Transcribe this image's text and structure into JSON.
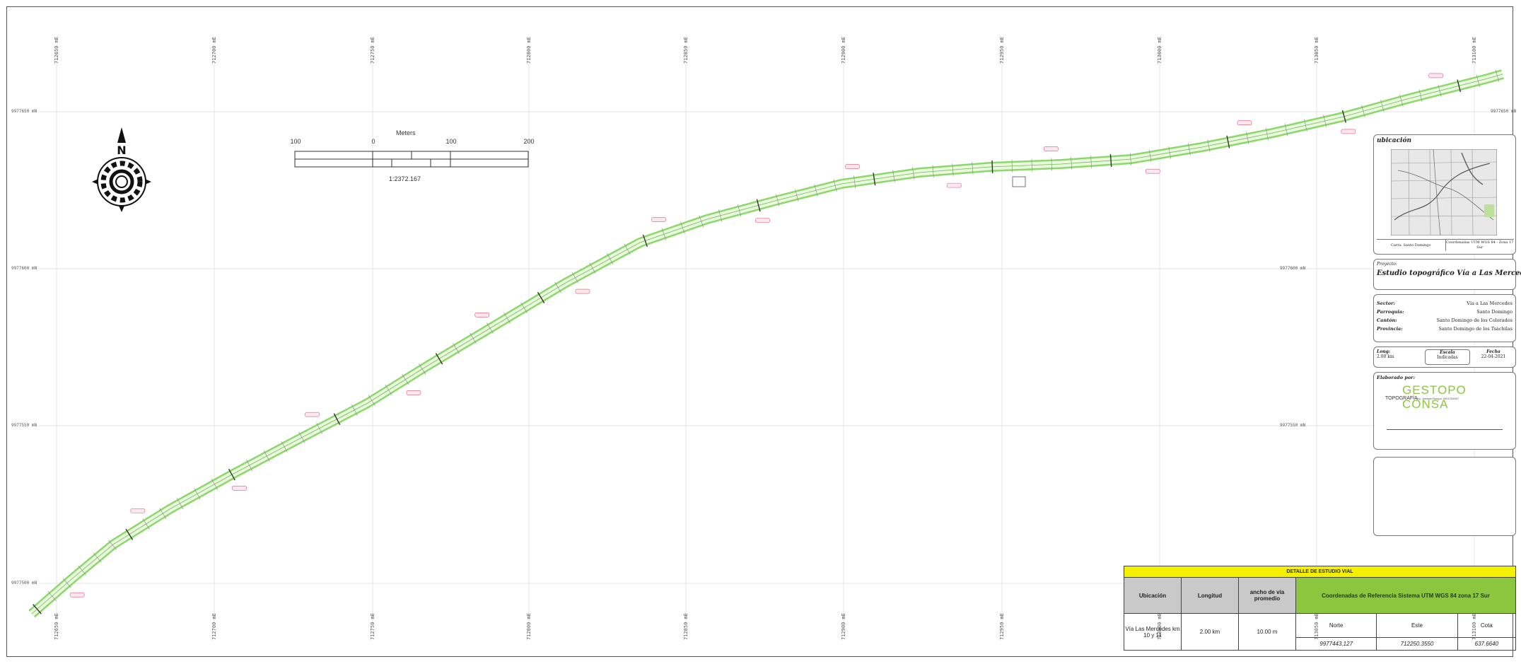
{
  "map": {
    "top_coords": [
      "712650 mE",
      "712700 mE",
      "712750 mE",
      "712800 mE",
      "712850 mE",
      "712900 mE",
      "712950 mE",
      "713000 mE",
      "713050 mE",
      "713100 mE"
    ],
    "bottom_coords": [
      "712650 mE",
      "712700 mE",
      "712750 mE",
      "712800 mE",
      "712850 mE",
      "712900 mE",
      "712950 mE",
      "713000 mE",
      "713050 mE",
      "713100 mE"
    ],
    "left_coords": [
      "9977650 mN",
      "9977600 mN",
      "9977550 mN",
      "9977500 mN"
    ],
    "right_coords": [
      "9977650 mN",
      "9977600 mN",
      "9977550 mN"
    ],
    "road_color": "#8cd86a",
    "station_color": "#e05a7a"
  },
  "scale": {
    "title": "Meters",
    "ticks": [
      "100",
      "0",
      "100",
      "200"
    ],
    "ratio": "1:2372.167"
  },
  "location_panel": {
    "title": "ubicación",
    "left_caption": "Carta: Santo Domingo",
    "right_caption": "Coordenadas UTM WGS 84 - Zona 17 Sur"
  },
  "project_panel": {
    "label": "Proyecto:",
    "name": "Estudio topográfico Vía a Las Mercedes"
  },
  "location_details": [
    {
      "key": "Sector:",
      "value": "Vía a Las Mercedes"
    },
    {
      "key": "Parroquia:",
      "value": "Santo Domingo"
    },
    {
      "key": "Cantón:",
      "value": "Santo Domingo de los Colorados"
    },
    {
      "key": "Provincia:",
      "value": "Santo Domingo de los Tsáchilas"
    }
  ],
  "meta_panel": {
    "long_label": "Long:",
    "long_value": "2.00 km",
    "scale_label": "Escala",
    "scale_value": "Indicadas",
    "date_label": "Fecha",
    "date_value": "22-04-2021"
  },
  "author_panel": {
    "label": "Elaborado por:",
    "brand": "GESTOPO CONSA",
    "sub": "TOPOGRAFÍA",
    "tagline": "Ing. Jonatan Bungui, 0001234567"
  },
  "table": {
    "title": "DETALLE DE ESTUDIO VIAL",
    "headers": [
      "Ubicación",
      "Longitud",
      "ancho de vía promedio"
    ],
    "ref_header": "Coordenadas de Referencia Sistema UTM WGS 84 zona 17 Sur",
    "ref_cols": [
      "Norte",
      "Este",
      "Cota"
    ],
    "row": {
      "ubicacion": "Vía Las Mercedes km 10 y 11",
      "longitud": "2.00 km",
      "ancho": "10.00 m",
      "norte": "9977443.127",
      "este": "712250.3550",
      "cota": "637.6640"
    }
  }
}
